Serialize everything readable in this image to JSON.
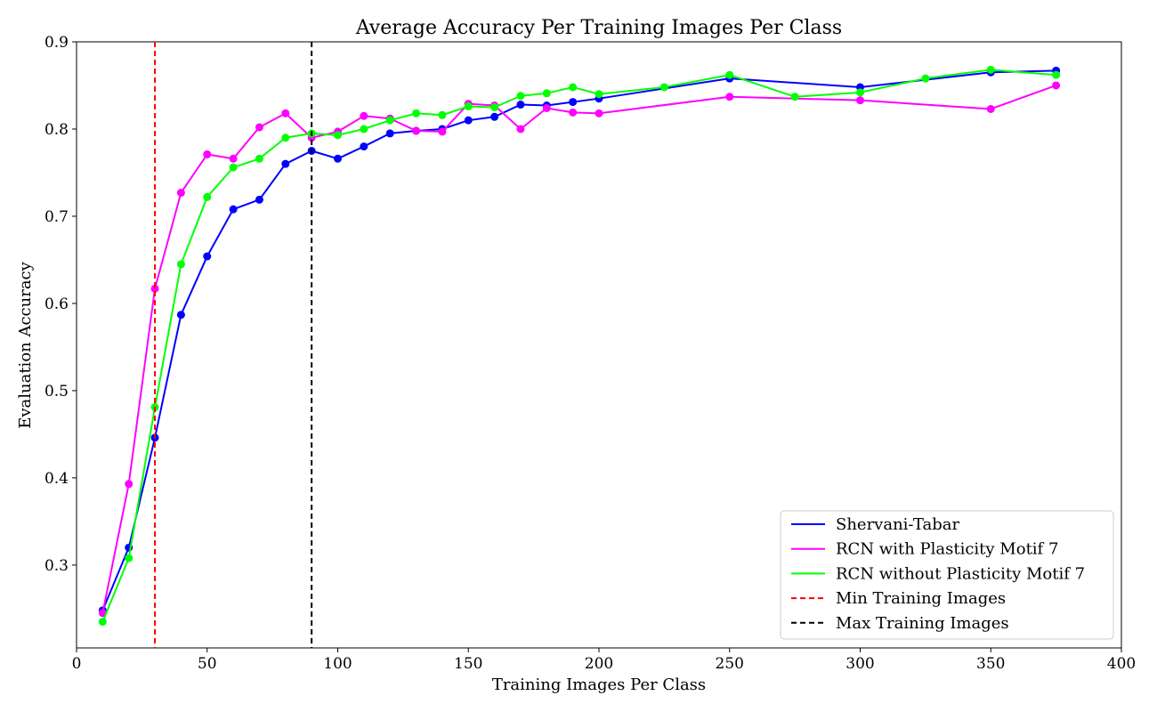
{
  "chart_data": {
    "type": "line",
    "title": "Average Accuracy Per Training Images Per Class",
    "xlabel": "Training Images Per Class",
    "ylabel": "Evaluation Accuracy",
    "xlim": [
      0,
      400
    ],
    "ylim": [
      0.205,
      0.9
    ],
    "xticks": [
      0,
      50,
      100,
      150,
      200,
      250,
      300,
      350,
      400
    ],
    "yticks": [
      0.3,
      0.4,
      0.5,
      0.6,
      0.7,
      0.8,
      0.9
    ],
    "xtick_labels": [
      "0",
      "50",
      "100",
      "150",
      "200",
      "250",
      "300",
      "350",
      "400"
    ],
    "ytick_labels": [
      "0.3",
      "0.4",
      "0.5",
      "0.6",
      "0.7",
      "0.8",
      "0.9"
    ],
    "grid": false,
    "legend_position": "lower-right",
    "series": [
      {
        "name": "Shervani-Tabar",
        "color": "#0000ff",
        "marker": "circle",
        "x": [
          10,
          20,
          30,
          40,
          50,
          60,
          70,
          80,
          90,
          100,
          110,
          120,
          130,
          140,
          150,
          160,
          170,
          180,
          190,
          200,
          250,
          300,
          350,
          375
        ],
        "y": [
          0.248,
          0.32,
          0.446,
          0.587,
          0.654,
          0.708,
          0.719,
          0.76,
          0.775,
          0.766,
          0.78,
          0.795,
          0.798,
          0.8,
          0.81,
          0.814,
          0.828,
          0.827,
          0.831,
          0.835,
          0.858,
          0.848,
          0.865,
          0.867
        ]
      },
      {
        "name": "RCN with Plasticity Motif 7",
        "color": "#ff00ff",
        "marker": "circle",
        "x": [
          10,
          20,
          30,
          40,
          50,
          60,
          70,
          80,
          90,
          100,
          110,
          120,
          130,
          140,
          150,
          160,
          170,
          180,
          190,
          200,
          250,
          300,
          350,
          375
        ],
        "y": [
          0.245,
          0.393,
          0.617,
          0.727,
          0.771,
          0.766,
          0.802,
          0.818,
          0.79,
          0.797,
          0.815,
          0.812,
          0.798,
          0.797,
          0.829,
          0.827,
          0.8,
          0.824,
          0.819,
          0.818,
          0.837,
          0.833,
          0.823,
          0.85
        ]
      },
      {
        "name": "RCN without Plasticity Motif 7",
        "color": "#00ff00",
        "marker": "circle",
        "x": [
          10,
          20,
          30,
          40,
          50,
          60,
          70,
          80,
          90,
          100,
          110,
          120,
          130,
          140,
          150,
          160,
          170,
          180,
          190,
          200,
          225,
          250,
          275,
          300,
          325,
          350,
          375
        ],
        "y": [
          0.235,
          0.308,
          0.481,
          0.645,
          0.722,
          0.756,
          0.766,
          0.79,
          0.795,
          0.793,
          0.8,
          0.81,
          0.818,
          0.816,
          0.826,
          0.825,
          0.838,
          0.841,
          0.848,
          0.84,
          0.848,
          0.862,
          0.837,
          0.842,
          0.858,
          0.868,
          0.862
        ]
      }
    ],
    "vlines": [
      {
        "name": "Min Training Images",
        "x": 30,
        "color": "#ff0000",
        "style": "dashed"
      },
      {
        "name": "Max Training Images",
        "x": 90,
        "color": "#000000",
        "style": "dashed"
      }
    ]
  }
}
